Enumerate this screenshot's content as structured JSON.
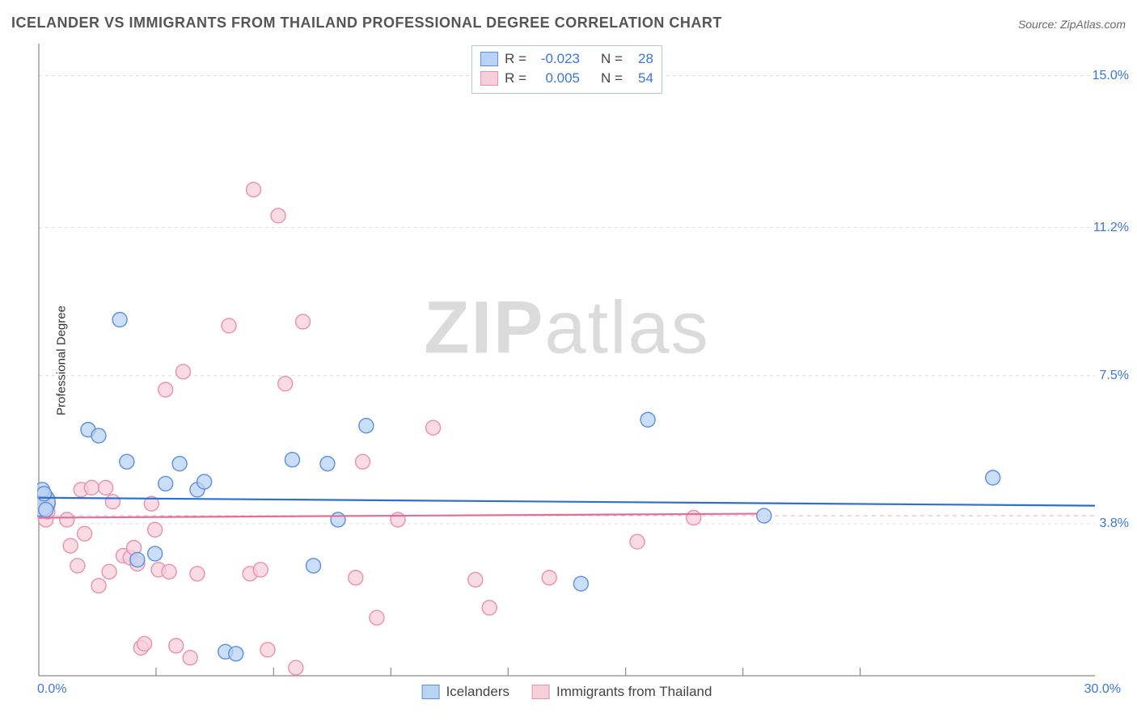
{
  "title": "ICELANDER VS IMMIGRANTS FROM THAILAND PROFESSIONAL DEGREE CORRELATION CHART",
  "source_label": "Source: ZipAtlas.com",
  "ylabel": "Professional Degree",
  "watermark_bold": "ZIP",
  "watermark_rest": "atlas",
  "chart": {
    "type": "scatter",
    "background_color": "#ffffff",
    "grid_color": "#dcdcdc",
    "axis_color": "#8a8a8a",
    "label_color": "#3b76d6",
    "xlim": [
      0.0,
      30.0
    ],
    "ylim": [
      0.0,
      15.8
    ],
    "x_min_label": "0.0%",
    "x_max_label": "30.0%",
    "ytick_labels": [
      "3.8%",
      "7.5%",
      "11.2%",
      "15.0%"
    ],
    "ytick_values": [
      3.8,
      7.5,
      11.2,
      15.0
    ],
    "xtick_values": [
      3.33,
      6.67,
      10.0,
      13.33,
      16.67,
      20.0,
      23.33
    ],
    "marker_radius": 9,
    "marker_radius_big": 18,
    "marker_stroke_width": 1.4,
    "trend_line_width": 2.2,
    "series": [
      {
        "name": "Icelanders",
        "fill": "#b9d3f4",
        "stroke": "#5a8fdc",
        "line_color": "#2f6fd0",
        "R": "-0.023",
        "N": "28",
        "trend": {
          "y_left": 4.45,
          "y_right": 4.25
        },
        "points": [
          [
            0.05,
            4.35,
            18
          ],
          [
            0.1,
            4.65
          ],
          [
            0.15,
            4.55
          ],
          [
            0.2,
            4.15
          ],
          [
            1.4,
            6.15
          ],
          [
            1.7,
            6.0
          ],
          [
            2.3,
            8.9
          ],
          [
            2.5,
            5.35
          ],
          [
            2.8,
            2.9
          ],
          [
            3.3,
            3.05
          ],
          [
            3.6,
            4.8
          ],
          [
            4.0,
            5.3
          ],
          [
            4.5,
            4.65
          ],
          [
            4.7,
            4.85
          ],
          [
            5.3,
            0.6
          ],
          [
            5.6,
            0.55
          ],
          [
            7.2,
            5.4
          ],
          [
            7.8,
            2.75
          ],
          [
            8.2,
            5.3
          ],
          [
            8.5,
            3.9
          ],
          [
            9.3,
            6.25
          ],
          [
            15.4,
            2.3
          ],
          [
            17.3,
            6.4
          ],
          [
            20.6,
            4.0
          ],
          [
            27.1,
            4.95
          ]
        ]
      },
      {
        "name": "Immigrants from Thailand",
        "fill": "#f7cfda",
        "stroke": "#e98fb0",
        "line_color": "#e37094",
        "R": "0.005",
        "N": "54",
        "trend": {
          "y_left": 3.95,
          "y_right": 4.05,
          "x_right": 20.4
        },
        "points": [
          [
            0.05,
            4.3,
            18
          ],
          [
            0.1,
            4.15
          ],
          [
            0.12,
            4.5
          ],
          [
            0.2,
            3.9
          ],
          [
            0.25,
            4.1
          ],
          [
            0.8,
            3.9
          ],
          [
            0.9,
            3.25
          ],
          [
            1.1,
            2.75
          ],
          [
            1.2,
            4.65
          ],
          [
            1.3,
            3.55
          ],
          [
            1.5,
            4.7
          ],
          [
            1.7,
            2.25
          ],
          [
            1.9,
            4.7
          ],
          [
            2.0,
            2.6
          ],
          [
            2.1,
            4.35
          ],
          [
            2.4,
            3.0
          ],
          [
            2.6,
            2.95
          ],
          [
            2.7,
            3.2
          ],
          [
            2.8,
            2.8
          ],
          [
            2.9,
            0.7
          ],
          [
            3.0,
            0.8
          ],
          [
            3.2,
            4.3
          ],
          [
            3.3,
            3.65
          ],
          [
            3.4,
            2.65
          ],
          [
            3.6,
            7.15
          ],
          [
            3.7,
            2.6
          ],
          [
            3.9,
            0.75
          ],
          [
            4.1,
            7.6
          ],
          [
            4.3,
            0.45
          ],
          [
            4.5,
            2.55
          ],
          [
            5.4,
            8.75
          ],
          [
            6.0,
            2.55
          ],
          [
            6.1,
            12.15
          ],
          [
            6.3,
            2.65
          ],
          [
            6.5,
            0.65
          ],
          [
            6.8,
            11.5
          ],
          [
            7.0,
            7.3
          ],
          [
            7.3,
            0.2
          ],
          [
            7.5,
            8.85
          ],
          [
            9.0,
            2.45
          ],
          [
            9.2,
            5.35
          ],
          [
            9.6,
            1.45
          ],
          [
            10.2,
            3.9
          ],
          [
            11.2,
            6.2
          ],
          [
            12.4,
            2.4
          ],
          [
            12.8,
            1.7
          ],
          [
            14.5,
            2.45
          ],
          [
            17.0,
            3.35
          ],
          [
            18.6,
            3.95
          ]
        ]
      }
    ]
  },
  "bottom_legend": [
    {
      "label": "Icelanders",
      "fill": "#b9d3f4",
      "stroke": "#5a8fdc"
    },
    {
      "label": "Immigrants from Thailand",
      "fill": "#f7cfda",
      "stroke": "#e98fb0"
    }
  ]
}
